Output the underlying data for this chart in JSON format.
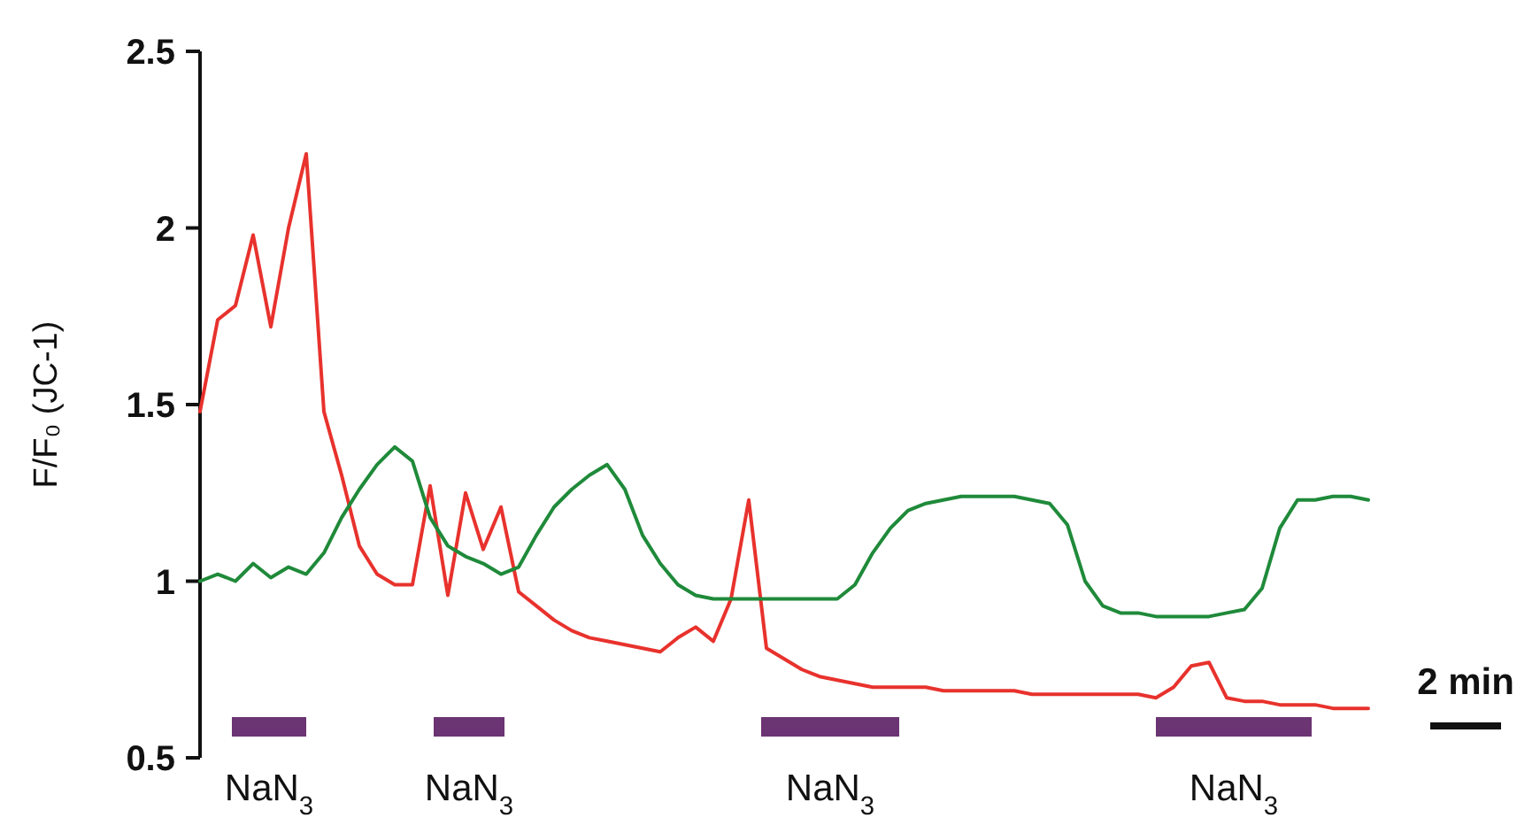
{
  "chart_data": {
    "type": "line",
    "ylabel": "F/F₀ (JC-1)",
    "ylim": [
      0.5,
      2.5
    ],
    "yticks": [
      0.5,
      1,
      1.5,
      2,
      2.5
    ],
    "tick_labels": "y",
    "marker": "none",
    "line_style": "solid",
    "categories": [
      null,
      null,
      null,
      null,
      null,
      null,
      null,
      null,
      null,
      null,
      null,
      null,
      null,
      null,
      null,
      null,
      null,
      null,
      null,
      null,
      null,
      null,
      null,
      null,
      null,
      null,
      null,
      null,
      null,
      null,
      null,
      null,
      null,
      null,
      null,
      null,
      null,
      null,
      null,
      null,
      null,
      null,
      null,
      null,
      null,
      null,
      null,
      null,
      null,
      null,
      null,
      null,
      null,
      null,
      null,
      null,
      null,
      null,
      null,
      null,
      null,
      null,
      null,
      null,
      null,
      null,
      null
    ],
    "series": [
      {
        "color": "#e8322d",
        "values": [
          1.48,
          1.74,
          1.78,
          1.98,
          1.72,
          2.0,
          2.21,
          1.48,
          1.3,
          1.1,
          1.02,
          0.99,
          0.99,
          1.27,
          0.96,
          1.25,
          1.09,
          1.21,
          0.97,
          0.93,
          0.89,
          0.86,
          0.84,
          0.83,
          0.82,
          0.81,
          0.8,
          0.84,
          0.87,
          0.83,
          0.95,
          1.23,
          0.81,
          0.78,
          0.75,
          0.73,
          0.72,
          0.71,
          0.7,
          0.7,
          0.7,
          0.7,
          0.69,
          0.69,
          0.69,
          0.69,
          0.69,
          0.68,
          0.68,
          0.68,
          0.68,
          0.68,
          0.68,
          0.68,
          0.67,
          0.7,
          0.76,
          0.77,
          0.67,
          0.66,
          0.66,
          0.65,
          0.65,
          0.65,
          0.64,
          0.64,
          0.64
        ]
      },
      {
        "color": "#1f8a3a",
        "values": [
          1.0,
          1.02,
          1.0,
          1.05,
          1.01,
          1.04,
          1.02,
          1.08,
          1.18,
          1.26,
          1.33,
          1.38,
          1.34,
          1.18,
          1.1,
          1.07,
          1.05,
          1.02,
          1.04,
          1.13,
          1.21,
          1.26,
          1.3,
          1.33,
          1.26,
          1.13,
          1.05,
          0.99,
          0.96,
          0.95,
          0.95,
          0.95,
          0.95,
          0.95,
          0.95,
          0.95,
          0.95,
          0.99,
          1.08,
          1.15,
          1.2,
          1.22,
          1.23,
          1.24,
          1.24,
          1.24,
          1.24,
          1.23,
          1.22,
          1.16,
          1.0,
          0.93,
          0.91,
          0.91,
          0.9,
          0.9,
          0.9,
          0.9,
          0.91,
          0.92,
          0.98,
          1.15,
          1.23,
          1.23,
          1.24,
          1.24,
          1.23
        ]
      }
    ],
    "annotations": [
      "NaN$_{3}$",
      "NaN$_{3}$",
      "NaN$_{3}$",
      "NaN$_{3}$",
      "2 min"
    ]
  }
}
